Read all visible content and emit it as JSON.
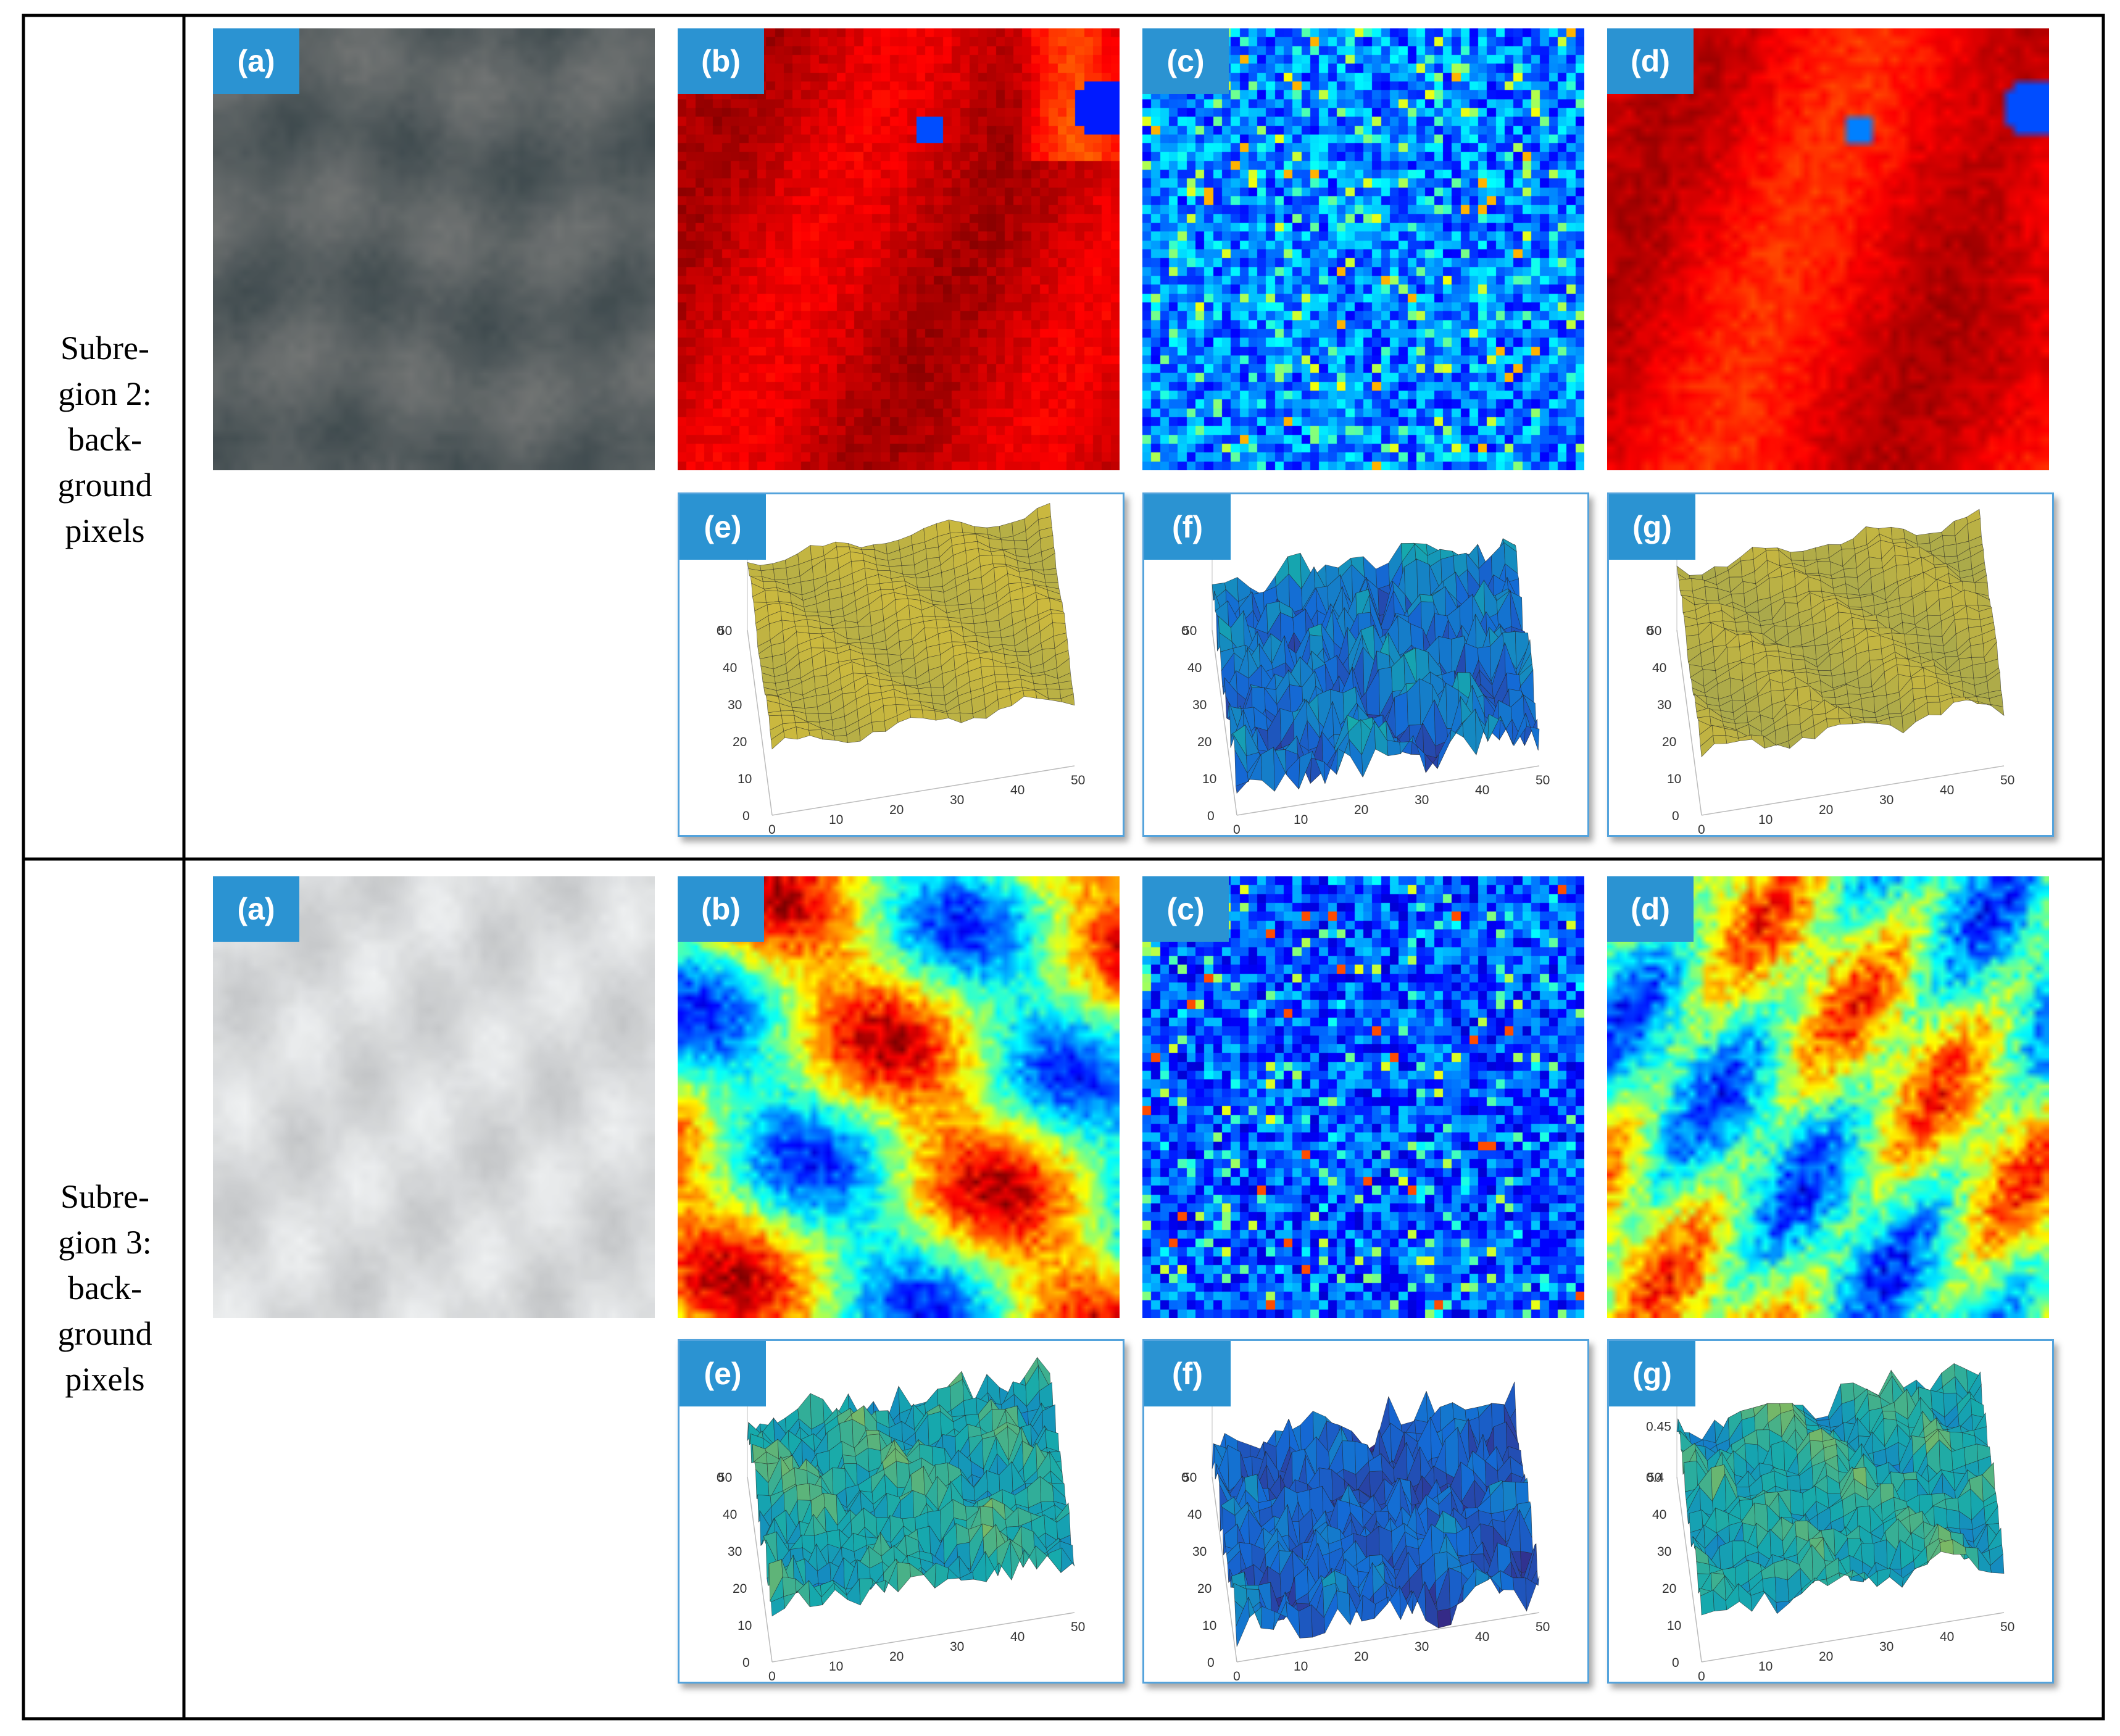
{
  "rows": [
    {
      "label_lines": [
        "Subre-",
        "gion 2:",
        "back-",
        "ground",
        "pixels"
      ],
      "panels": {
        "a": {
          "tag": "(a)",
          "kind": "photo",
          "icon": "rgb-photo"
        },
        "b": {
          "tag": "(b)",
          "kind": "heatmap",
          "icon": "jet-heatmap"
        },
        "c": {
          "tag": "(c)",
          "kind": "heatmap",
          "icon": "jet-heatmap"
        },
        "d": {
          "tag": "(d)",
          "kind": "heatmap",
          "icon": "jet-heatmap"
        },
        "e": {
          "tag": "(e)",
          "kind": "surface",
          "icon": "3d-surface-plot"
        },
        "f": {
          "tag": "(f)",
          "kind": "surface",
          "icon": "3d-surface-plot"
        },
        "g": {
          "tag": "(g)",
          "kind": "surface",
          "icon": "3d-surface-plot"
        }
      }
    },
    {
      "label_lines": [
        "Subre-",
        "gion 3:",
        "back-",
        "ground",
        "pixels"
      ],
      "panels": {
        "a": {
          "tag": "(a)",
          "kind": "photo",
          "icon": "rgb-photo"
        },
        "b": {
          "tag": "(b)",
          "kind": "heatmap",
          "icon": "jet-heatmap"
        },
        "c": {
          "tag": "(c)",
          "kind": "heatmap",
          "icon": "jet-heatmap"
        },
        "d": {
          "tag": "(d)",
          "kind": "heatmap",
          "icon": "jet-heatmap"
        },
        "e": {
          "tag": "(e)",
          "kind": "surface",
          "icon": "3d-surface-plot"
        },
        "f": {
          "tag": "(f)",
          "kind": "surface",
          "icon": "3d-surface-plot"
        },
        "g": {
          "tag": "(g)",
          "kind": "surface",
          "icon": "3d-surface-plot"
        }
      }
    }
  ],
  "colors": {
    "border": "#000000",
    "tag": "#2b93d2",
    "plot_border": "#54a3dc"
  },
  "chart_data": [
    {
      "type": "surface",
      "panel": "row1-e",
      "x_ticks": [
        "0",
        "10",
        "20",
        "30",
        "40",
        "50"
      ],
      "y_ticks": [
        "0",
        "10",
        "20",
        "30",
        "40",
        "50"
      ],
      "z_ticks": [
        "0",
        "0.5"
      ]
    },
    {
      "type": "surface",
      "panel": "row1-f",
      "x_ticks": [
        "0",
        "10",
        "20",
        "30",
        "40",
        "50"
      ],
      "y_ticks": [
        "0",
        "10",
        "20",
        "30",
        "40",
        "50"
      ],
      "z_ticks": [
        "0",
        "0.5"
      ]
    },
    {
      "type": "surface",
      "panel": "row1-g",
      "x_ticks": [
        "0",
        "10",
        "20",
        "30",
        "40",
        "50"
      ],
      "y_ticks": [
        "0",
        "10",
        "20",
        "30",
        "40",
        "50"
      ],
      "z_ticks": [
        "0",
        "0.5"
      ]
    },
    {
      "type": "surface",
      "panel": "row2-e",
      "x_ticks": [
        "0",
        "10",
        "20",
        "30",
        "40",
        "50"
      ],
      "y_ticks": [
        "0",
        "10",
        "20",
        "30",
        "40",
        "50"
      ],
      "z_ticks": [
        "0",
        "0.5"
      ]
    },
    {
      "type": "surface",
      "panel": "row2-f",
      "x_ticks": [
        "0",
        "10",
        "20",
        "30",
        "40",
        "50"
      ],
      "y_ticks": [
        "0",
        "10",
        "20",
        "30",
        "40",
        "50"
      ],
      "z_ticks": [
        "0",
        "0.5"
      ]
    },
    {
      "type": "surface",
      "panel": "row2-g",
      "x_ticks": [
        "0",
        "10",
        "20",
        "30",
        "40",
        "50"
      ],
      "y_ticks": [
        "0",
        "10",
        "20",
        "30",
        "40",
        "50"
      ],
      "z_ticks": [
        "0.4",
        "0.45",
        "0.5"
      ]
    }
  ]
}
